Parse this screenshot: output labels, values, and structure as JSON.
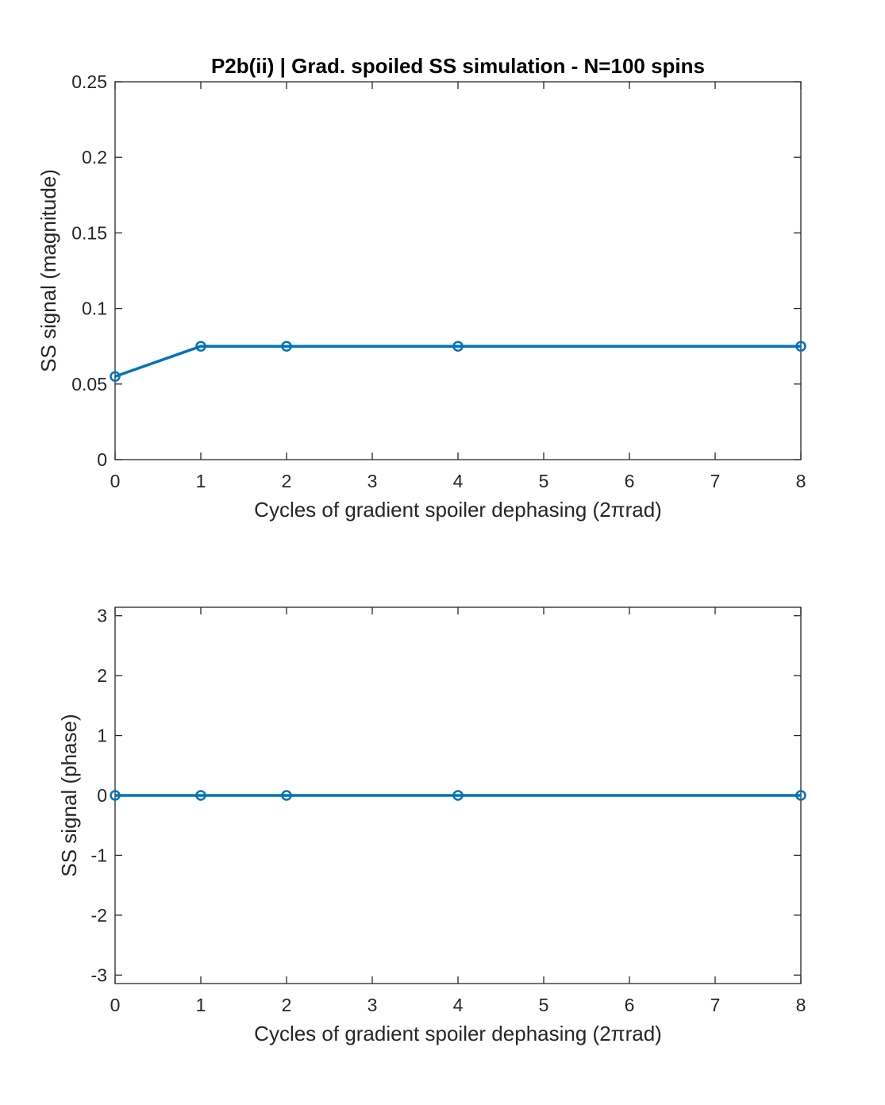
{
  "chart_data": [
    {
      "type": "line",
      "title": "P2b(ii) | Grad. spoiled SS simulation - N=100 spins",
      "xlabel": "Cycles of gradient spoiler dephasing (2πrad)",
      "ylabel": "SS signal (magnitude)",
      "xlim": [
        0,
        8
      ],
      "ylim": [
        0,
        0.25
      ],
      "xticks": [
        0,
        1,
        2,
        3,
        4,
        5,
        6,
        7,
        8
      ],
      "xtick_labels": [
        "0",
        "1",
        "2",
        "3",
        "4",
        "5",
        "6",
        "7",
        "8"
      ],
      "yticks": [
        0,
        0.05,
        0.1,
        0.15,
        0.2,
        0.25
      ],
      "ytick_labels": [
        "0",
        "0.05",
        "0.1",
        "0.15",
        "0.2",
        "0.25"
      ],
      "grid": false,
      "x": [
        0,
        1,
        2,
        4,
        8
      ],
      "series": [
        {
          "values": [
            0.055,
            0.075,
            0.075,
            0.075,
            0.075
          ],
          "color": "#0072BD",
          "marker": "circle"
        }
      ]
    },
    {
      "type": "line",
      "title": "",
      "xlabel": "Cycles of gradient spoiler dephasing (2πrad)",
      "ylabel": "SS signal (phase)",
      "xlim": [
        0,
        8
      ],
      "ylim": [
        -3.1416,
        3.1416
      ],
      "xticks": [
        0,
        1,
        2,
        3,
        4,
        5,
        6,
        7,
        8
      ],
      "xtick_labels": [
        "0",
        "1",
        "2",
        "3",
        "4",
        "5",
        "6",
        "7",
        "8"
      ],
      "yticks": [
        -3,
        -2,
        -1,
        0,
        1,
        2,
        3
      ],
      "ytick_labels": [
        "-3",
        "-2",
        "-1",
        "0",
        "1",
        "2",
        "3"
      ],
      "grid": false,
      "x": [
        0,
        1,
        2,
        4,
        8
      ],
      "series": [
        {
          "values": [
            0,
            0,
            0,
            0,
            0
          ],
          "color": "#0072BD",
          "marker": "circle"
        }
      ]
    }
  ]
}
